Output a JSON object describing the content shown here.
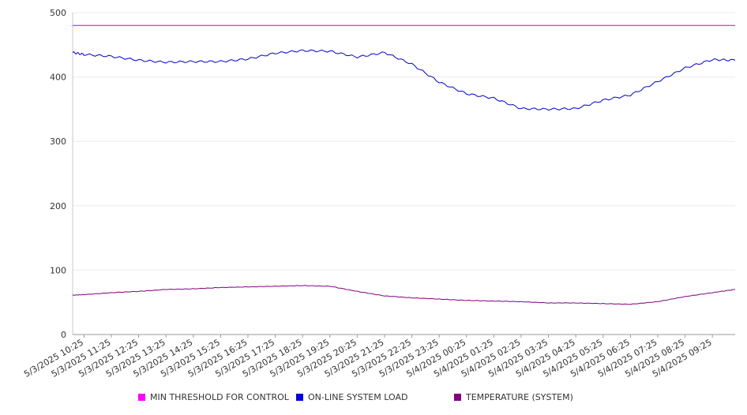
{
  "chart_data": {
    "type": "line",
    "title": "",
    "xlabel": "",
    "ylabel": "",
    "ylim": [
      0,
      500
    ],
    "yticks": [
      0,
      100,
      200,
      300,
      400,
      500
    ],
    "grid": true,
    "legend_position": "bottom",
    "x_tick_labels": [
      "5/3/2025 10:25",
      "5/3/2025 11:25",
      "5/3/2025 12:25",
      "5/3/2025 13:25",
      "5/3/2025 14:25",
      "5/3/2025 15:25",
      "5/3/2025 16:25",
      "5/3/2025 17:25",
      "5/3/2025 18:25",
      "5/3/2025 19:25",
      "5/3/2025 20:25",
      "5/3/2025 21:25",
      "5/3/2025 22:25",
      "5/3/2025 23:25",
      "5/4/2025 00:25",
      "5/4/2025 01:25",
      "5/4/2025 02:25",
      "5/4/2025 03:25",
      "5/4/2025 04:25",
      "5/4/2025 05:25",
      "5/4/2025 06:25",
      "5/4/2025 07:25",
      "5/4/2025 08:25",
      "5/4/2025 09:25"
    ],
    "x": [
      "5/3/2025 10:00",
      "5/3/2025 10:25",
      "5/3/2025 11:25",
      "5/3/2025 12:25",
      "5/3/2025 13:25",
      "5/3/2025 14:25",
      "5/3/2025 15:25",
      "5/3/2025 16:25",
      "5/3/2025 17:25",
      "5/3/2025 18:25",
      "5/3/2025 19:25",
      "5/3/2025 20:25",
      "5/3/2025 21:25",
      "5/3/2025 22:25",
      "5/3/2025 23:25",
      "5/4/2025 00:25",
      "5/4/2025 01:25",
      "5/4/2025 02:25",
      "5/4/2025 03:25",
      "5/4/2025 04:25",
      "5/4/2025 05:25",
      "5/4/2025 06:25",
      "5/4/2025 07:25",
      "5/4/2025 08:25",
      "5/4/2025 09:25",
      "5/4/2025 10:15"
    ],
    "series": [
      {
        "name": "MIN THRESHOLD FOR CONTROL",
        "color": "#cc00cc",
        "values": [
          480,
          480,
          480,
          480,
          480,
          480,
          480,
          480,
          480,
          480,
          480,
          480,
          480,
          480,
          480,
          480,
          480,
          480,
          480,
          480,
          480,
          480,
          480,
          480,
          480,
          480
        ]
      },
      {
        "name": "ON-LINE SYSTEM LOAD",
        "color": "#0000cc",
        "values": [
          438,
          435,
          432,
          426,
          423,
          424,
          424,
          428,
          437,
          441,
          440,
          431,
          438,
          420,
          392,
          374,
          367,
          351,
          350,
          351,
          364,
          372,
          393,
          414,
          427,
          426
        ]
      },
      {
        "name": "TEMPERATURE (SYSTEM)",
        "color": "#800080",
        "values": [
          61,
          62,
          65,
          67,
          70,
          71,
          73,
          74,
          75,
          76,
          75,
          67,
          60,
          57,
          55,
          53,
          52,
          51,
          49,
          49,
          48,
          47,
          51,
          59,
          65,
          70
        ]
      }
    ]
  }
}
